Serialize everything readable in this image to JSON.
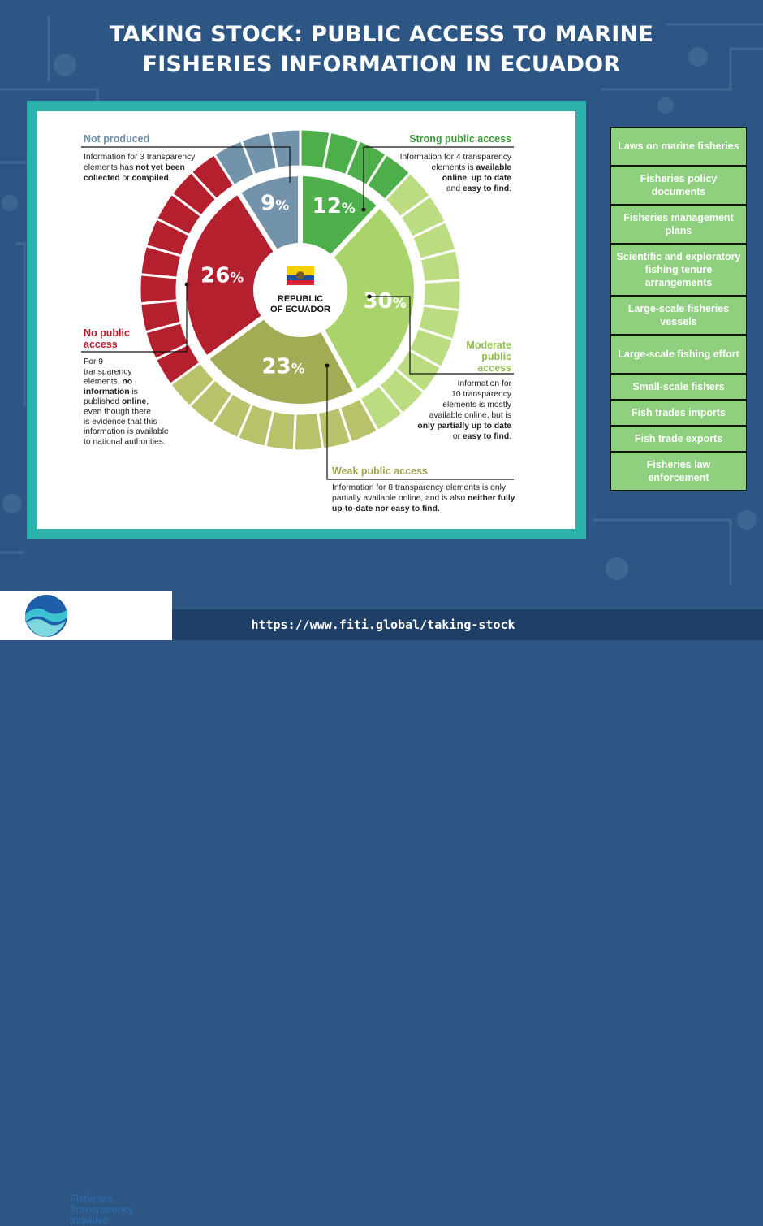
{
  "title_line1": "TAKING STOCK: PUBLIC ACCESS TO MARINE",
  "title_line2": "FISHERIES INFORMATION IN ECUADOR",
  "chart_data": {
    "type": "pie",
    "center_label": [
      "REPUBLIC",
      "OF ECUADOR"
    ],
    "categories": [
      "Strong public access",
      "Moderate public access",
      "Weak public access",
      "No public access",
      "Not produced"
    ],
    "values": [
      12,
      30,
      23,
      26,
      9
    ],
    "value_labels": [
      "12",
      "30",
      "23",
      "26",
      "9"
    ],
    "element_counts": [
      4,
      10,
      8,
      9,
      3
    ],
    "colors": [
      "#4daf4a",
      "#a9d36b",
      "#a4ab55",
      "#b5202f",
      "#7393ab"
    ],
    "ring_colors": [
      "#4daf4a",
      "#bcdc82",
      "#b9c26a",
      "#b5202f",
      "#7393ab"
    ]
  },
  "annotations": {
    "not_produced": {
      "heading": "Not produced",
      "lines": [
        "Information for 3 transparency",
        "elements has |not yet been|",
        "|collected| or |compiled|."
      ]
    },
    "strong": {
      "heading": "Strong public access",
      "lines": [
        "Information for 4 transparency",
        "elements is |available|",
        "|online, up to date|",
        "and |easy to find|."
      ]
    },
    "moderate": {
      "heading": [
        "Moderate",
        "public",
        "access"
      ],
      "lines": [
        "Information for",
        "10 transparency",
        "elements is mostly",
        "available online, but is",
        "|only partially up to date|",
        "or |easy to find|."
      ]
    },
    "weak": {
      "heading": "Weak public access",
      "lines": [
        "Information for 8 transparency elements is only",
        "partially available online, and is also |neither fully|",
        "|up-to-date nor easy to find.|"
      ]
    },
    "no_public": {
      "heading": [
        "No public",
        "access"
      ],
      "lines": [
        "For 9",
        "transparency",
        "elements, |no|",
        "|information| is",
        "published |online|,",
        "even though there",
        "is evidence that this",
        "information is available",
        "to national authorities."
      ]
    }
  },
  "sidebar": {
    "items": [
      "Laws on marine fisheries",
      "Fisheries policy documents",
      "Fisheries management plans",
      "Scientific and exploratory fishing tenure arrangements",
      "Large-scale fisheries vessels",
      "Large-scale fishing effort",
      "Small-scale fishers",
      "Fish trades imports",
      "Fish trade exports",
      "Fisheries law enforcement"
    ]
  },
  "footer": {
    "url": "https://www.fiti.global/taking-stock",
    "logo_lines": [
      "Fisheries",
      "Transparency",
      "Initiative"
    ]
  }
}
